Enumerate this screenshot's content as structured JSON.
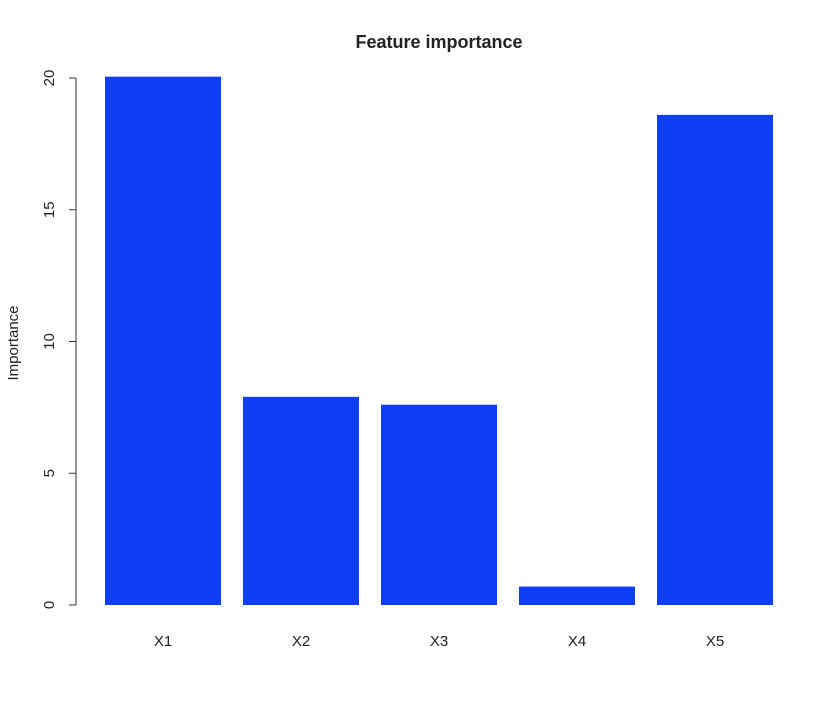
{
  "chart_data": {
    "type": "bar",
    "title": "Feature importance",
    "xlabel": "",
    "ylabel": "Importance",
    "categories": [
      "X1",
      "X2",
      "X3",
      "X4",
      "X5"
    ],
    "values": [
      20.05,
      7.9,
      7.6,
      0.7,
      18.6
    ],
    "ylim": [
      0,
      20
    ],
    "yticks": [
      0,
      5,
      10,
      15,
      20
    ],
    "grid": false,
    "legend": "none",
    "bar_color": "#0f3ff5"
  }
}
